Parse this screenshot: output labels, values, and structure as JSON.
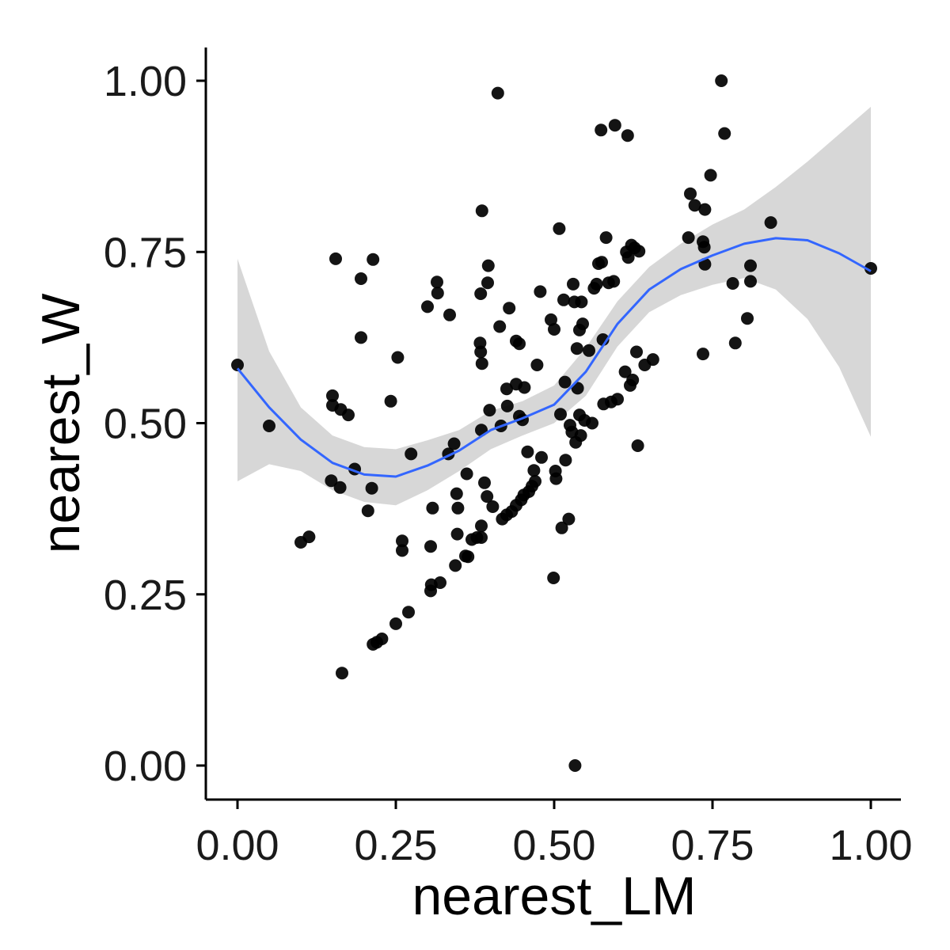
{
  "chart_data": {
    "type": "scatter",
    "title": "",
    "xlabel": "nearest_LM",
    "ylabel": "nearest_W",
    "xlim": [
      -0.05,
      1.05
    ],
    "ylim": [
      -0.05,
      1.05
    ],
    "xticks": [
      0,
      0.25,
      0.5,
      0.75,
      1
    ],
    "yticks": [
      0,
      0.25,
      0.5,
      0.75,
      1
    ],
    "xtick_labels": [
      "0.00",
      "0.25",
      "0.50",
      "0.75",
      "1.00"
    ],
    "ytick_labels": [
      "0.00",
      "0.25",
      "0.50",
      "0.75",
      "1.00"
    ],
    "grid": false,
    "colors": {
      "points": "#000000",
      "smooth_line": "#3366ff",
      "ribbon": "#d3d3d3"
    },
    "points": [
      [
        0.0,
        0.585
      ],
      [
        0.05,
        0.496
      ],
      [
        0.1,
        0.326
      ],
      [
        0.113,
        0.334
      ],
      [
        0.148,
        0.416
      ],
      [
        0.155,
        0.74
      ],
      [
        0.15,
        0.54
      ],
      [
        0.15,
        0.526
      ],
      [
        0.163,
        0.52
      ],
      [
        0.162,
        0.406
      ],
      [
        0.175,
        0.512
      ],
      [
        0.185,
        0.433
      ],
      [
        0.195,
        0.711
      ],
      [
        0.195,
        0.625
      ],
      [
        0.206,
        0.372
      ],
      [
        0.212,
        0.405
      ],
      [
        0.214,
        0.739
      ],
      [
        0.214,
        0.177
      ],
      [
        0.22,
        0.18
      ],
      [
        0.228,
        0.185
      ],
      [
        0.165,
        0.135
      ],
      [
        0.242,
        0.532
      ],
      [
        0.253,
        0.596
      ],
      [
        0.25,
        0.207
      ],
      [
        0.26,
        0.328
      ],
      [
        0.26,
        0.314
      ],
      [
        0.27,
        0.224
      ],
      [
        0.274,
        0.455
      ],
      [
        0.3,
        0.67
      ],
      [
        0.305,
        0.255
      ],
      [
        0.306,
        0.264
      ],
      [
        0.305,
        0.32
      ],
      [
        0.308,
        0.376
      ],
      [
        0.315,
        0.706
      ],
      [
        0.316,
        0.69
      ],
      [
        0.32,
        0.267
      ],
      [
        0.333,
        0.455
      ],
      [
        0.335,
        0.658
      ],
      [
        0.342,
        0.47
      ],
      [
        0.344,
        0.292
      ],
      [
        0.346,
        0.397
      ],
      [
        0.347,
        0.338
      ],
      [
        0.348,
        0.376
      ],
      [
        0.36,
        0.306
      ],
      [
        0.362,
        0.426
      ],
      [
        0.364,
        0.305
      ],
      [
        0.37,
        0.33
      ],
      [
        0.378,
        0.333
      ],
      [
        0.383,
        0.617
      ],
      [
        0.384,
        0.689
      ],
      [
        0.386,
        0.81
      ],
      [
        0.384,
        0.604
      ],
      [
        0.386,
        0.587
      ],
      [
        0.385,
        0.49
      ],
      [
        0.385,
        0.333
      ],
      [
        0.385,
        0.35
      ],
      [
        0.39,
        0.413
      ],
      [
        0.394,
        0.393
      ],
      [
        0.395,
        0.705
      ],
      [
        0.396,
        0.73
      ],
      [
        0.398,
        0.519
      ],
      [
        0.403,
        0.378
      ],
      [
        0.411,
        0.982
      ],
      [
        0.414,
        0.641
      ],
      [
        0.416,
        0.496
      ],
      [
        0.418,
        0.36
      ],
      [
        0.425,
        0.366
      ],
      [
        0.425,
        0.55
      ],
      [
        0.426,
        0.525
      ],
      [
        0.429,
        0.668
      ],
      [
        0.433,
        0.371
      ],
      [
        0.44,
        0.62
      ],
      [
        0.44,
        0.557
      ],
      [
        0.44,
        0.38
      ],
      [
        0.445,
        0.616
      ],
      [
        0.445,
        0.51
      ],
      [
        0.448,
        0.388
      ],
      [
        0.45,
        0.505
      ],
      [
        0.452,
        0.395
      ],
      [
        0.453,
        0.552
      ],
      [
        0.458,
        0.458
      ],
      [
        0.46,
        0.4
      ],
      [
        0.465,
        0.408
      ],
      [
        0.468,
        0.431
      ],
      [
        0.47,
        0.415
      ],
      [
        0.473,
        0.585
      ],
      [
        0.478,
        0.692
      ],
      [
        0.48,
        0.45
      ],
      [
        0.495,
        0.651
      ],
      [
        0.499,
        0.274
      ],
      [
        0.5,
        0.637
      ],
      [
        0.502,
        0.43
      ],
      [
        0.503,
        0.419
      ],
      [
        0.508,
        0.784
      ],
      [
        0.51,
        0.513
      ],
      [
        0.512,
        0.347
      ],
      [
        0.515,
        0.68
      ],
      [
        0.517,
        0.56
      ],
      [
        0.518,
        0.446
      ],
      [
        0.523,
        0.36
      ],
      [
        0.525,
        0.497
      ],
      [
        0.528,
        0.487
      ],
      [
        0.53,
        0.703
      ],
      [
        0.532,
        0.677
      ],
      [
        0.533,
        0.0
      ],
      [
        0.534,
        0.472
      ],
      [
        0.536,
        0.609
      ],
      [
        0.537,
        0.551
      ],
      [
        0.54,
        0.512
      ],
      [
        0.54,
        0.636
      ],
      [
        0.542,
        0.482
      ],
      [
        0.543,
        0.677
      ],
      [
        0.545,
        0.645
      ],
      [
        0.548,
        0.504
      ],
      [
        0.555,
        0.606
      ],
      [
        0.56,
        0.5
      ],
      [
        0.563,
        0.697
      ],
      [
        0.567,
        0.703
      ],
      [
        0.57,
        0.733
      ],
      [
        0.574,
        0.928
      ],
      [
        0.575,
        0.735
      ],
      [
        0.577,
        0.622
      ],
      [
        0.578,
        0.528
      ],
      [
        0.582,
        0.771
      ],
      [
        0.586,
        0.705
      ],
      [
        0.59,
        0.531
      ],
      [
        0.594,
        0.707
      ],
      [
        0.596,
        0.935
      ],
      [
        0.6,
        0.535
      ],
      [
        0.612,
        0.575
      ],
      [
        0.614,
        0.75
      ],
      [
        0.616,
        0.92
      ],
      [
        0.617,
        0.742
      ],
      [
        0.62,
        0.555
      ],
      [
        0.622,
        0.76
      ],
      [
        0.624,
        0.563
      ],
      [
        0.627,
        0.756
      ],
      [
        0.63,
        0.604
      ],
      [
        0.632,
        0.467
      ],
      [
        0.634,
        0.751
      ],
      [
        0.643,
        0.585
      ],
      [
        0.656,
        0.593
      ],
      [
        0.712,
        0.771
      ],
      [
        0.715,
        0.835
      ],
      [
        0.722,
        0.818
      ],
      [
        0.735,
        0.601
      ],
      [
        0.735,
        0.765
      ],
      [
        0.738,
        0.812
      ],
      [
        0.737,
        0.757
      ],
      [
        0.738,
        0.732
      ],
      [
        0.747,
        0.862
      ],
      [
        0.764,
        1.0
      ],
      [
        0.769,
        0.923
      ],
      [
        0.782,
        0.704
      ],
      [
        0.786,
        0.617
      ],
      [
        0.805,
        0.653
      ],
      [
        0.81,
        0.73
      ],
      [
        0.81,
        0.707
      ],
      [
        0.842,
        0.793
      ],
      [
        1.0,
        0.726
      ]
    ],
    "smooth_fit": {
      "x": [
        0.0,
        0.05,
        0.1,
        0.15,
        0.2,
        0.25,
        0.3,
        0.35,
        0.4,
        0.45,
        0.5,
        0.55,
        0.6,
        0.65,
        0.7,
        0.75,
        0.8,
        0.85,
        0.9,
        0.95,
        1.0
      ],
      "y": [
        0.58,
        0.523,
        0.476,
        0.442,
        0.425,
        0.422,
        0.438,
        0.46,
        0.49,
        0.507,
        0.527,
        0.575,
        0.645,
        0.695,
        0.725,
        0.745,
        0.762,
        0.77,
        0.767,
        0.748,
        0.722
      ],
      "lower": [
        0.415,
        0.44,
        0.43,
        0.402,
        0.385,
        0.38,
        0.402,
        0.43,
        0.462,
        0.482,
        0.5,
        0.54,
        0.612,
        0.662,
        0.687,
        0.702,
        0.712,
        0.695,
        0.652,
        0.582,
        0.48
      ],
      "upper": [
        0.74,
        0.605,
        0.523,
        0.482,
        0.465,
        0.462,
        0.475,
        0.49,
        0.518,
        0.532,
        0.555,
        0.61,
        0.678,
        0.728,
        0.762,
        0.79,
        0.812,
        0.845,
        0.882,
        0.922,
        0.962
      ]
    }
  }
}
